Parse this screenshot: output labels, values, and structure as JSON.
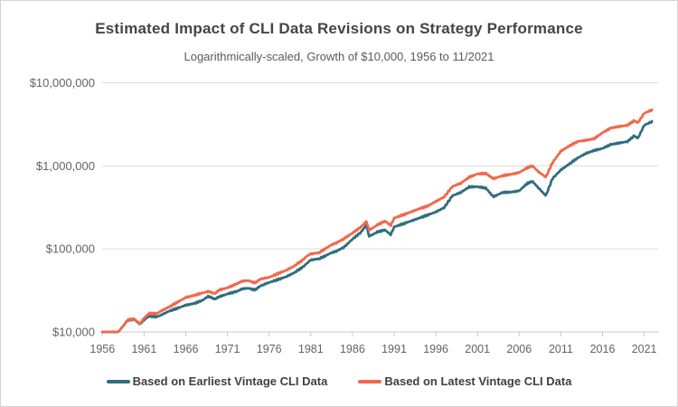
{
  "chart_data": {
    "type": "line",
    "title": "Estimated Impact of CLI Data Revisions on Strategy Performance",
    "subtitle": "Logarithmically-scaled, Growth of $10,000, 1956 to 11/2021",
    "legend_position": "bottom",
    "grid": "horizontal-only",
    "x_axis": {
      "range": [
        1956,
        2021.92
      ],
      "ticks": [
        1956,
        1961,
        1966,
        1971,
        1976,
        1981,
        1986,
        1991,
        1996,
        2001,
        2006,
        2011,
        2016,
        2021
      ],
      "tick_labels": [
        "1956",
        "1961",
        "1966",
        "1971",
        "1976",
        "1981",
        "1986",
        "1991",
        "1996",
        "2001",
        "2006",
        "2011",
        "2016",
        "2021"
      ]
    },
    "y_axis": {
      "scale": "log",
      "range": [
        10000,
        10000000
      ],
      "ticks": [
        10000,
        100000,
        1000000,
        10000000
      ],
      "tick_labels": [
        "$10,000",
        "$100,000",
        "$1,000,000",
        "$10,000,000"
      ]
    },
    "colors": {
      "earliest_series": "#2E6E7E",
      "latest_series": "#F2674B",
      "gridline": "#DCDCDC",
      "axis_line": "#C8C8C8",
      "tick_text": "#636363",
      "title_text": "#454545",
      "subtitle_text": "#5A5A5A",
      "legend_text": "#404040",
      "figure_border": "#D5D5D5",
      "background": "#FFFFFF"
    },
    "series": [
      {
        "name": "Based on Earliest Vintage CLI Data",
        "color": "#2E6E7E",
        "points_note": "values estimated from log-scale chart, [decimal_year, dollars]",
        "points": [
          [
            1956.0,
            10000
          ],
          [
            1957.0,
            10000
          ],
          [
            1957.9,
            10000
          ],
          [
            1958.5,
            11800
          ],
          [
            1959.0,
            13800
          ],
          [
            1959.8,
            14200
          ],
          [
            1960.5,
            12400
          ],
          [
            1961.0,
            13900
          ],
          [
            1961.6,
            15600
          ],
          [
            1962.5,
            15200
          ],
          [
            1963.0,
            15900
          ],
          [
            1964.0,
            17800
          ],
          [
            1965.0,
            19300
          ],
          [
            1966.0,
            21000
          ],
          [
            1967.0,
            22000
          ],
          [
            1968.0,
            24000
          ],
          [
            1968.7,
            26900
          ],
          [
            1969.5,
            24800
          ],
          [
            1970.0,
            26500
          ],
          [
            1971.0,
            28700
          ],
          [
            1972.0,
            30500
          ],
          [
            1972.8,
            33000
          ],
          [
            1973.5,
            33600
          ],
          [
            1974.3,
            32000
          ],
          [
            1975.0,
            36000
          ],
          [
            1976.0,
            39400
          ],
          [
            1977.0,
            42500
          ],
          [
            1978.0,
            46000
          ],
          [
            1979.0,
            51500
          ],
          [
            1980.0,
            60000
          ],
          [
            1980.6,
            67900
          ],
          [
            1981.0,
            73500
          ],
          [
            1982.0,
            76000
          ],
          [
            1982.7,
            82000
          ],
          [
            1983.5,
            90000
          ],
          [
            1984.0,
            93000
          ],
          [
            1985.0,
            105000
          ],
          [
            1986.0,
            131000
          ],
          [
            1987.0,
            158000
          ],
          [
            1987.7,
            195000
          ],
          [
            1987.95,
            142000
          ],
          [
            1988.5,
            150000
          ],
          [
            1989.0,
            160000
          ],
          [
            1989.9,
            169000
          ],
          [
            1990.6,
            148000
          ],
          [
            1991.0,
            184000
          ],
          [
            1992.0,
            199000
          ],
          [
            1993.0,
            216000
          ],
          [
            1994.0,
            235000
          ],
          [
            1995.0,
            255000
          ],
          [
            1996.0,
            278000
          ],
          [
            1997.0,
            314000
          ],
          [
            1998.0,
            437000
          ],
          [
            1999.0,
            478000
          ],
          [
            2000.0,
            557000
          ],
          [
            2001.0,
            560000
          ],
          [
            2002.0,
            540000
          ],
          [
            2002.9,
            424000
          ],
          [
            2004.0,
            478000
          ],
          [
            2005.0,
            482000
          ],
          [
            2006.0,
            500000
          ],
          [
            2007.0,
            617000
          ],
          [
            2007.6,
            650000
          ],
          [
            2008.3,
            544000
          ],
          [
            2009.2,
            437000
          ],
          [
            2010.0,
            702000
          ],
          [
            2011.0,
            891000
          ],
          [
            2012.0,
            1050000
          ],
          [
            2013.0,
            1240000
          ],
          [
            2014.0,
            1410000
          ],
          [
            2015.0,
            1530000
          ],
          [
            2016.0,
            1620000
          ],
          [
            2017.0,
            1810000
          ],
          [
            2018.0,
            1880000
          ],
          [
            2019.0,
            1960000
          ],
          [
            2019.8,
            2300000
          ],
          [
            2020.25,
            2150000
          ],
          [
            2021.0,
            3080000
          ],
          [
            2021.92,
            3400000
          ]
        ]
      },
      {
        "name": "Based on Latest Vintage CLI Data",
        "color": "#F2674B",
        "points_note": "values estimated from log-scale chart, [decimal_year, dollars]",
        "points": [
          [
            1956.0,
            10000
          ],
          [
            1957.0,
            10000
          ],
          [
            1957.9,
            10000
          ],
          [
            1958.5,
            11800
          ],
          [
            1959.0,
            13900
          ],
          [
            1959.8,
            14400
          ],
          [
            1960.5,
            12500
          ],
          [
            1961.0,
            14700
          ],
          [
            1961.6,
            16700
          ],
          [
            1962.5,
            16600
          ],
          [
            1963.0,
            17800
          ],
          [
            1964.0,
            20000
          ],
          [
            1965.0,
            22800
          ],
          [
            1966.0,
            26000
          ],
          [
            1967.0,
            27500
          ],
          [
            1968.0,
            29500
          ],
          [
            1968.7,
            30700
          ],
          [
            1969.5,
            29000
          ],
          [
            1970.0,
            32000
          ],
          [
            1971.0,
            34000
          ],
          [
            1972.0,
            37500
          ],
          [
            1972.8,
            41000
          ],
          [
            1973.5,
            41500
          ],
          [
            1974.3,
            39000
          ],
          [
            1975.0,
            43500
          ],
          [
            1976.0,
            45400
          ],
          [
            1977.0,
            50000
          ],
          [
            1978.0,
            55000
          ],
          [
            1979.0,
            62000
          ],
          [
            1980.0,
            73000
          ],
          [
            1980.6,
            83000
          ],
          [
            1981.0,
            87000
          ],
          [
            1982.0,
            90000
          ],
          [
            1982.7,
            100000
          ],
          [
            1983.5,
            112000
          ],
          [
            1984.0,
            117000
          ],
          [
            1985.0,
            133000
          ],
          [
            1986.0,
            155000
          ],
          [
            1987.0,
            183000
          ],
          [
            1987.7,
            215000
          ],
          [
            1987.95,
            168000
          ],
          [
            1988.5,
            180000
          ],
          [
            1989.0,
            195000
          ],
          [
            1989.9,
            216000
          ],
          [
            1990.6,
            191000
          ],
          [
            1991.0,
            235000
          ],
          [
            1992.0,
            255000
          ],
          [
            1993.0,
            278000
          ],
          [
            1994.0,
            304000
          ],
          [
            1995.0,
            327000
          ],
          [
            1996.0,
            372000
          ],
          [
            1997.0,
            422000
          ],
          [
            1998.0,
            564000
          ],
          [
            1999.0,
            617000
          ],
          [
            2000.0,
            730000
          ],
          [
            2001.0,
            800000
          ],
          [
            2002.0,
            810000
          ],
          [
            2002.9,
            700000
          ],
          [
            2004.0,
            760000
          ],
          [
            2005.0,
            790000
          ],
          [
            2006.0,
            830000
          ],
          [
            2007.0,
            950000
          ],
          [
            2007.6,
            1000000
          ],
          [
            2008.3,
            850000
          ],
          [
            2009.2,
            730000
          ],
          [
            2010.0,
            1090000
          ],
          [
            2011.0,
            1500000
          ],
          [
            2012.0,
            1730000
          ],
          [
            2013.0,
            1960000
          ],
          [
            2014.0,
            2030000
          ],
          [
            2015.0,
            2120000
          ],
          [
            2016.0,
            2500000
          ],
          [
            2017.0,
            2860000
          ],
          [
            2018.0,
            2970000
          ],
          [
            2019.0,
            3080000
          ],
          [
            2019.8,
            3500000
          ],
          [
            2020.25,
            3300000
          ],
          [
            2021.0,
            4300000
          ],
          [
            2021.92,
            4700000
          ]
        ]
      }
    ]
  }
}
